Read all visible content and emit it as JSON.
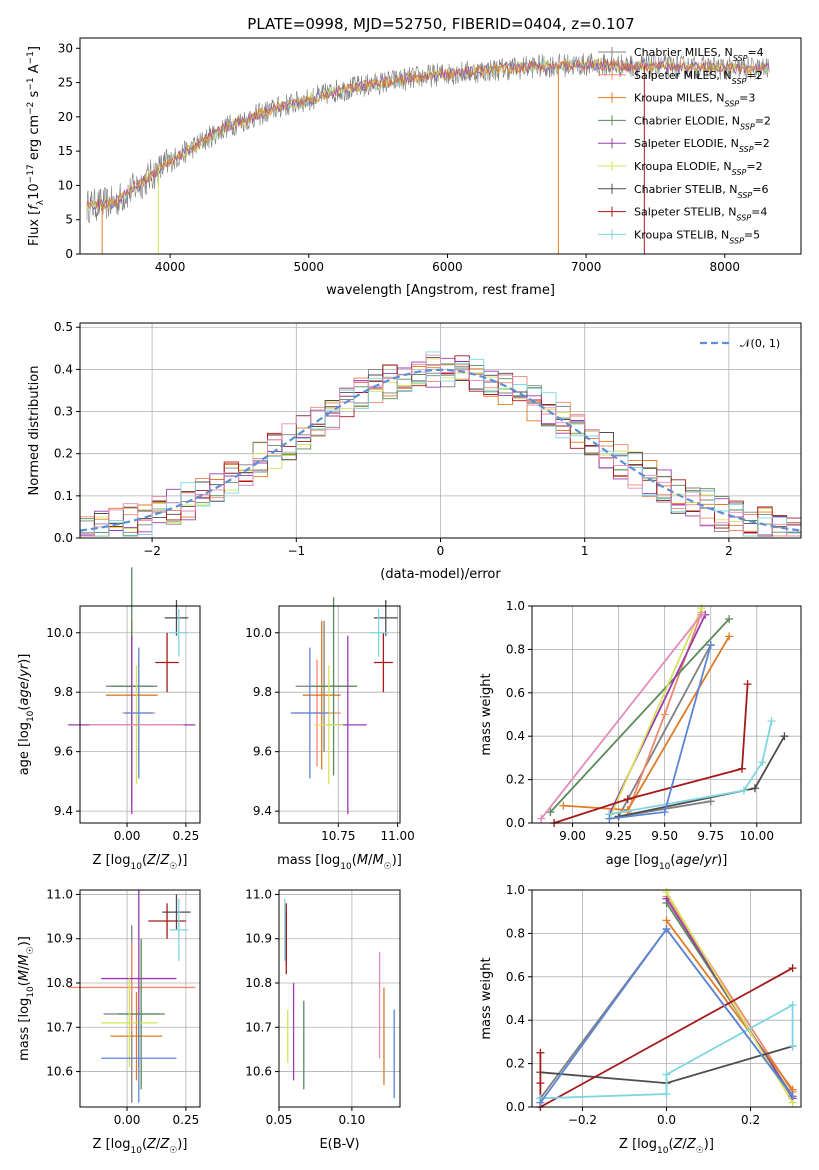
{
  "title": "PLATE=0998, MJD=52750, FIBERID=0404, z=0.107",
  "colors": {
    "Chabrier MILES": "#808080",
    "Salpeter MILES": "#f08a6c",
    "Kroupa MILES": "#e07b24",
    "Chabrier ELODIE": "#5a8a5a",
    "Salpeter ELODIE": "#9b3bb0",
    "Kroupa ELODIE": "#d6e35a",
    "Chabrier STELIB": "#4d4d4d",
    "Salpeter STELIB": "#a51a1a",
    "Kroupa STELIB": "#7fd6e0",
    "extra_blue": "#5b86d6",
    "extra_pink": "#e58ab9"
  },
  "chart_data": [
    {
      "type": "line",
      "title": "PLATE=0998, MJD=52750, FIBERID=0404, z=0.107",
      "xlabel": "wavelength [Angstrom, rest frame]",
      "ylabel": "Flux [fλ10⁻¹⁷ erg cm⁻² s⁻¹ A⁻¹]",
      "xlim": [
        3350,
        8550
      ],
      "ylim": [
        0,
        31.5
      ],
      "xticks": [
        4000,
        5000,
        6000,
        7000,
        8000
      ],
      "yticks": [
        0,
        5,
        10,
        15,
        20,
        25,
        30
      ],
      "legend_position": "right",
      "legend": [
        {
          "name": "Chabrier MILES, N",
          "sub": "SSP",
          "suffix": "=4"
        },
        {
          "name": "Salpeter MILES, N",
          "sub": "SSP",
          "suffix": "=2"
        },
        {
          "name": "Kroupa MILES, N",
          "sub": "SSP",
          "suffix": "=3"
        },
        {
          "name": "Chabrier ELODIE, N",
          "sub": "SSP",
          "suffix": "=2"
        },
        {
          "name": "Salpeter ELODIE, N",
          "sub": "SSP",
          "suffix": "=2"
        },
        {
          "name": "Kroupa ELODIE, N",
          "sub": "SSP",
          "suffix": "=2"
        },
        {
          "name": "Chabrier STELIB, N",
          "sub": "SSP",
          "suffix": "=6"
        },
        {
          "name": "Salpeter STELIB, N",
          "sub": "SSP",
          "suffix": "=4"
        },
        {
          "name": "Kroupa STELIB, N",
          "sub": "SSP",
          "suffix": "=5"
        }
      ],
      "continuum": {
        "x": [
          3400,
          3600,
          3800,
          4000,
          4200,
          4400,
          4600,
          4800,
          5000,
          5200,
          5400,
          5600,
          5800,
          6000,
          6200,
          6400,
          6600,
          6800,
          7000,
          7200,
          7400,
          7600,
          7800,
          8000,
          8200,
          8320
        ],
        "y": [
          7.0,
          7.5,
          10.5,
          13.5,
          16.0,
          18.5,
          20.0,
          21.5,
          22.5,
          23.8,
          24.5,
          25.2,
          25.8,
          26.3,
          26.6,
          27.0,
          27.3,
          27.5,
          27.6,
          27.5,
          27.4,
          27.3,
          27.2,
          27.1,
          27.0,
          27.0
        ]
      }
    },
    {
      "type": "area",
      "xlabel": "(data-model)/error",
      "ylabel": "Normed distribution",
      "xlim": [
        -2.5,
        2.5
      ],
      "ylim": [
        0,
        0.51
      ],
      "xticks": [
        -2,
        -1,
        0,
        1,
        2
      ],
      "yticks": [
        0.0,
        0.1,
        0.2,
        0.3,
        0.4,
        0.5
      ],
      "legend_position": "top-right",
      "reference": {
        "name": "𝒩(0, 1)",
        "mean": 0,
        "sigma": 1
      }
    },
    {
      "type": "scatter",
      "xlabel": "Z [log10(Z/Z☉)]",
      "ylabel": "age [log10(age/yr)]",
      "xlim": [
        -0.2,
        0.31
      ],
      "ylim": [
        9.36,
        10.09
      ],
      "xticks": [
        0.0,
        0.25
      ],
      "yticks": [
        9.4,
        9.6,
        9.8,
        10.0
      ],
      "points": [
        {
          "series": "Chabrier MILES",
          "x": 0.02,
          "y": 9.82,
          "xerr": 0.11,
          "yerr": 0.22
        },
        {
          "series": "Salpeter MILES",
          "x": 0.05,
          "y": 9.73,
          "xerr": 0.07,
          "yerr": 0.18
        },
        {
          "series": "Kroupa MILES",
          "x": 0.02,
          "y": 9.79,
          "xerr": 0.11,
          "yerr": 0.25
        },
        {
          "series": "Chabrier ELODIE",
          "x": 0.02,
          "y": 9.82,
          "xerr": 0.09,
          "yerr": 0.4
        },
        {
          "series": "Salpeter ELODIE",
          "x": 0.02,
          "y": 9.69,
          "xerr": 0.27,
          "yerr": 0.3
        },
        {
          "series": "Kroupa ELODIE",
          "x": 0.04,
          "y": 9.69,
          "xerr": 0.08,
          "yerr": 0.2
        },
        {
          "series": "Chabrier STELIB",
          "x": 0.21,
          "y": 10.05,
          "xerr": 0.05,
          "yerr": 0.06
        },
        {
          "series": "Salpeter STELIB",
          "x": 0.17,
          "y": 9.9,
          "xerr": 0.05,
          "yerr": 0.1
        },
        {
          "series": "Kroupa STELIB",
          "x": 0.22,
          "y": 10.0,
          "xerr": 0.04,
          "yerr": 0.08
        },
        {
          "series": "extra_blue",
          "x": 0.05,
          "y": 9.73,
          "xerr": 0.06,
          "yerr": 0.22
        },
        {
          "series": "extra_pink",
          "x": 0.04,
          "y": 9.69,
          "xerr": 0.2,
          "yerr": 0.0
        }
      ]
    },
    {
      "type": "scatter",
      "xlabel": "mass [log10(M/M☉)]",
      "xlim": [
        10.5,
        11.01
      ],
      "ylim": [
        9.36,
        10.09
      ],
      "xticks": [
        10.75,
        11.0
      ],
      "yticks": [
        9.4,
        9.6,
        9.8,
        10.0
      ],
      "points": [
        {
          "series": "Chabrier MILES",
          "x": 10.69,
          "y": 9.82,
          "xerr": 0.12,
          "yerr": 0.22
        },
        {
          "series": "Salpeter MILES",
          "x": 10.66,
          "y": 9.73,
          "xerr": 0.1,
          "yerr": 0.18
        },
        {
          "series": "Kroupa MILES",
          "x": 10.68,
          "y": 9.79,
          "xerr": 0.08,
          "yerr": 0.25
        },
        {
          "series": "Chabrier ELODIE",
          "x": 10.73,
          "y": 9.82,
          "xerr": 0.1,
          "yerr": 0.3
        },
        {
          "series": "Salpeter ELODIE",
          "x": 10.79,
          "y": 9.69,
          "xerr": 0.08,
          "yerr": 0.3
        },
        {
          "series": "Kroupa ELODIE",
          "x": 10.71,
          "y": 9.69,
          "xerr": 0.06,
          "yerr": 0.2
        },
        {
          "series": "Chabrier STELIB",
          "x": 10.95,
          "y": 10.05,
          "xerr": 0.05,
          "yerr": 0.06
        },
        {
          "series": "Salpeter STELIB",
          "x": 10.94,
          "y": 9.9,
          "xerr": 0.04,
          "yerr": 0.1
        },
        {
          "series": "Kroupa STELIB",
          "x": 10.92,
          "y": 10.0,
          "xerr": 0.04,
          "yerr": 0.08
        },
        {
          "series": "extra_blue",
          "x": 10.63,
          "y": 9.73,
          "xerr": 0.08,
          "yerr": 0.22
        }
      ]
    },
    {
      "type": "line",
      "xlabel": "age [log10(age/yr)]",
      "ylabel": "mass weight",
      "xlim": [
        8.78,
        10.24
      ],
      "ylim": [
        0,
        1
      ],
      "xticks": [
        9.0,
        9.25,
        9.5,
        9.75,
        10.0
      ],
      "yticks": [
        0.0,
        0.2,
        0.4,
        0.6,
        0.8,
        1.0
      ],
      "series": [
        {
          "name": "Chabrier MILES",
          "x": [
            9.75,
            9.25,
            9.75
          ],
          "y": [
            0.1,
            0.03,
            0.82
          ]
        },
        {
          "name": "Salpeter MILES",
          "x": [
            9.3,
            9.5,
            9.7
          ],
          "y": [
            0.05,
            0.5,
            0.97
          ]
        },
        {
          "name": "Kroupa MILES",
          "x": [
            8.95,
            9.3,
            9.85
          ],
          "y": [
            0.08,
            0.06,
            0.86
          ]
        },
        {
          "name": "Chabrier ELODIE",
          "x": [
            8.88,
            9.85
          ],
          "y": [
            0.05,
            0.94
          ]
        },
        {
          "name": "Salpeter ELODIE",
          "x": [
            9.2,
            9.72
          ],
          "y": [
            0.04,
            0.96
          ]
        },
        {
          "name": "Kroupa ELODIE",
          "x": [
            9.2,
            9.7
          ],
          "y": [
            0.02,
            0.99
          ]
        },
        {
          "name": "Chabrier STELIB",
          "x": [
            9.25,
            9.99,
            10.15
          ],
          "y": [
            0.03,
            0.16,
            0.4
          ]
        },
        {
          "name": "Salpeter STELIB",
          "x": [
            8.9,
            9.3,
            9.92,
            9.95
          ],
          "y": [
            0.0,
            0.11,
            0.25,
            0.64
          ]
        },
        {
          "name": "Kroupa STELIB",
          "x": [
            9.2,
            9.93,
            10.03,
            10.08
          ],
          "y": [
            0.04,
            0.15,
            0.28,
            0.47
          ]
        },
        {
          "name": "extra_blue",
          "x": [
            9.2,
            9.5,
            9.75
          ],
          "y": [
            0.02,
            0.05,
            0.82
          ]
        },
        {
          "name": "extra_pink",
          "x": [
            8.83,
            9.7
          ],
          "y": [
            0.02,
            0.96
          ]
        }
      ]
    },
    {
      "type": "scatter",
      "xlabel": "Z [log10(Z/Z☉)]",
      "ylabel": "mass [log10(M/M☉)]",
      "xlim": [
        -0.2,
        0.31
      ],
      "ylim": [
        10.52,
        11.01
      ],
      "xticks": [
        0.0,
        0.25
      ],
      "yticks": [
        10.6,
        10.7,
        10.8,
        10.9,
        11.0
      ],
      "points": [
        {
          "series": "Chabrier MILES",
          "x": 0.02,
          "y": 10.73,
          "xerr": 0.12,
          "yerr": 0.2
        },
        {
          "series": "Salpeter MILES",
          "x": 0.02,
          "y": 10.79,
          "xerr": 0.27,
          "yerr": 0.1
        },
        {
          "series": "Kroupa MILES",
          "x": 0.04,
          "y": 10.68,
          "xerr": 0.11,
          "yerr": 0.1
        },
        {
          "series": "Chabrier ELODIE",
          "x": 0.06,
          "y": 10.73,
          "xerr": 0.1,
          "yerr": 0.17
        },
        {
          "series": "Salpeter ELODIE",
          "x": 0.05,
          "y": 10.81,
          "xerr": 0.16,
          "yerr": 0.2
        },
        {
          "series": "Kroupa ELODIE",
          "x": 0.01,
          "y": 10.71,
          "xerr": 0.12,
          "yerr": 0.1
        },
        {
          "series": "Chabrier STELIB",
          "x": 0.21,
          "y": 10.96,
          "xerr": 0.06,
          "yerr": 0.04
        },
        {
          "series": "Salpeter STELIB",
          "x": 0.17,
          "y": 10.94,
          "xerr": 0.08,
          "yerr": 0.04
        },
        {
          "series": "Kroupa STELIB",
          "x": 0.22,
          "y": 10.92,
          "xerr": 0.04,
          "yerr": 0.07
        },
        {
          "series": "extra_blue",
          "x": 0.05,
          "y": 10.63,
          "xerr": 0.16,
          "yerr": 0.1
        }
      ]
    },
    {
      "type": "scatter",
      "xlabel": "E(B-V)",
      "xlim": [
        0.05,
        0.133
      ],
      "ylim": [
        10.52,
        11.01
      ],
      "xticks": [
        0.05,
        0.1
      ],
      "yticks": [
        10.6,
        10.7,
        10.8,
        10.9,
        11.0
      ],
      "points": [
        {
          "series": "Chabrier MILES",
          "x": 0.055,
          "y": 10.9,
          "yerr": 0.06
        },
        {
          "series": "Kroupa STELIB",
          "x": 0.054,
          "y": 10.92,
          "yerr": 0.07
        },
        {
          "series": "Salpeter STELIB",
          "x": 0.055,
          "y": 10.9,
          "yerr": 0.08
        },
        {
          "series": "Kroupa ELODIE",
          "x": 0.056,
          "y": 10.68,
          "yerr": 0.06
        },
        {
          "series": "Salpeter ELODIE",
          "x": 0.06,
          "y": 10.69,
          "yerr": 0.11
        },
        {
          "series": "Chabrier ELODIE",
          "x": 0.067,
          "y": 10.66,
          "yerr": 0.1
        },
        {
          "series": "extra_pink",
          "x": 0.119,
          "y": 10.75,
          "yerr": 0.12
        },
        {
          "series": "Kroupa MILES",
          "x": 0.122,
          "y": 10.68,
          "yerr": 0.11
        },
        {
          "series": "extra_blue",
          "x": 0.129,
          "y": 10.64,
          "yerr": 0.1
        }
      ]
    },
    {
      "type": "line",
      "xlabel": "Z [log10(Z/Z☉)]",
      "ylabel": "mass weight",
      "xlim": [
        -0.32,
        0.32
      ],
      "ylim": [
        0,
        1
      ],
      "xticks": [
        -0.2,
        0.0,
        0.2
      ],
      "yticks": [
        0.0,
        0.2,
        0.4,
        0.6,
        0.8,
        1.0
      ],
      "series": [
        {
          "name": "Chabrier MILES",
          "x": [
            -0.3,
            0.0,
            0.3
          ],
          "y": [
            0.04,
            0.82,
            0.05
          ]
        },
        {
          "name": "Salpeter MILES",
          "x": [
            0.0,
            0.3
          ],
          "y": [
            0.97,
            0.07
          ]
        },
        {
          "name": "Kroupa MILES",
          "x": [
            0.0,
            0.3
          ],
          "y": [
            0.86,
            0.08
          ]
        },
        {
          "name": "Chabrier ELODIE",
          "x": [
            0.0,
            0.3
          ],
          "y": [
            0.94,
            0.05
          ]
        },
        {
          "name": "Salpeter ELODIE",
          "x": [
            0.0,
            0.3
          ],
          "y": [
            0.96,
            0.04
          ]
        },
        {
          "name": "Kroupa ELODIE",
          "x": [
            0.0,
            0.3
          ],
          "y": [
            0.99,
            0.02
          ]
        },
        {
          "name": "Chabrier STELIB",
          "x": [
            -0.3,
            0.0,
            0.3
          ],
          "y": [
            0.16,
            0.11,
            0.28
          ]
        },
        {
          "name": "Salpeter STELIB",
          "x": [
            -0.3,
            -0.3,
            -0.3,
            0.3
          ],
          "y": [
            0.25,
            0.11,
            0.0,
            0.64
          ]
        },
        {
          "name": "Kroupa STELIB",
          "x": [
            -0.3,
            0.0,
            0.0,
            0.3,
            0.3
          ],
          "y": [
            0.04,
            0.06,
            0.15,
            0.47,
            0.28
          ]
        },
        {
          "name": "extra_blue",
          "x": [
            -0.3,
            0.0,
            0.3
          ],
          "y": [
            0.02,
            0.82,
            0.05
          ]
        }
      ]
    }
  ]
}
